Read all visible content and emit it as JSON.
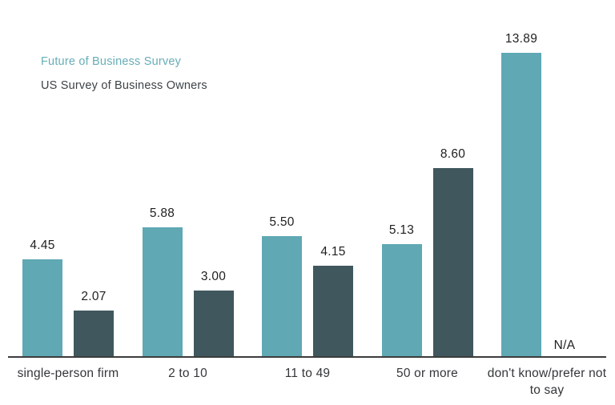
{
  "legend": {
    "series1": "Future of Business Survey",
    "series2": "US Survey of Business Owners"
  },
  "colors": {
    "series1_bar": "#5fa8b4",
    "series2_bar": "#40575e",
    "legend1_text": "#68adb8",
    "legend2_text": "#3e4347",
    "axis": "#3c3c3c",
    "value_text": "#1f1f1f",
    "category_text": "#333638"
  },
  "chart_data": {
    "type": "bar",
    "title": "",
    "xlabel": "",
    "ylabel": "",
    "categories": [
      "single-person firm",
      "2 to 10",
      "11 to 49",
      "50 or more",
      "don't know/prefer not to say"
    ],
    "series": [
      {
        "name": "Future of Business Survey",
        "values": [
          4.45,
          5.88,
          5.5,
          5.13,
          13.89
        ],
        "labels": [
          "4.45",
          "5.88",
          "5.50",
          "5.13",
          "13.89"
        ]
      },
      {
        "name": "US Survey of Business Owners",
        "values": [
          2.07,
          3.0,
          4.15,
          8.6,
          null
        ],
        "labels": [
          "2.07",
          "3.00",
          "4.15",
          "8.60",
          "N/A"
        ]
      }
    ],
    "na_label": "N/A",
    "ylim": [
      0,
      14.5
    ],
    "grid": false,
    "legend_position": "top-left",
    "value_labels_shown": true
  }
}
